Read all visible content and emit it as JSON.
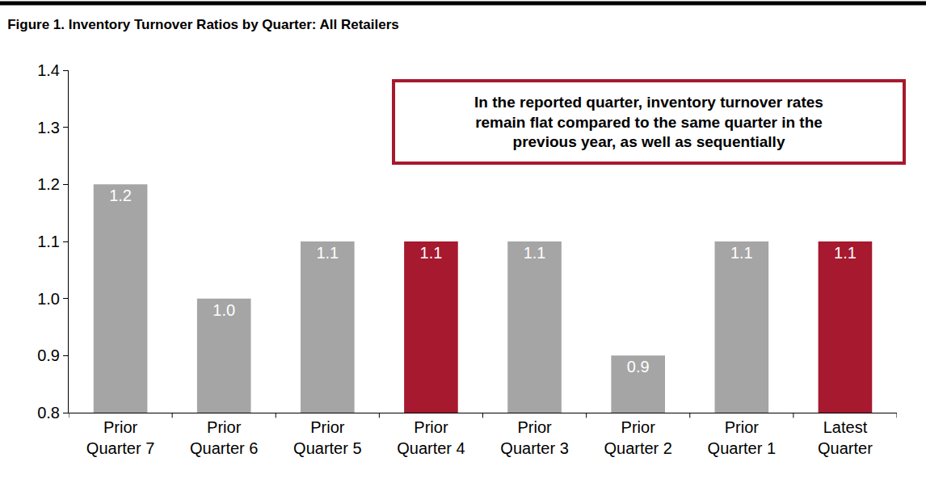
{
  "chart_data": {
    "type": "bar",
    "title": "Figure 1. Inventory Turnover Ratios by Quarter: All Retailers",
    "categories": [
      "Prior Quarter 7",
      "Prior Quarter 6",
      "Prior Quarter 5",
      "Prior Quarter 4",
      "Prior Quarter 3",
      "Prior Quarter 2",
      "Prior Quarter 1",
      "Latest Quarter"
    ],
    "values": [
      1.2,
      1.0,
      1.1,
      1.1,
      1.1,
      0.9,
      1.1,
      1.1
    ],
    "value_labels": [
      "1.2",
      "1.0",
      "1.1",
      "1.1",
      "1.1",
      "0.9",
      "1.1",
      "1.1"
    ],
    "colors": [
      "#a5a5a5",
      "#a5a5a5",
      "#a5a5a5",
      "#a6192e",
      "#a5a5a5",
      "#a5a5a5",
      "#a5a5a5",
      "#a6192e"
    ],
    "ylim": [
      0.8,
      1.4
    ],
    "yticks": [
      0.8,
      0.9,
      {
        "value": 1,
        "label": "1.0"
      },
      1.1,
      1.2,
      1.3,
      1.4
    ],
    "grid": false,
    "data_labels": true,
    "annotations": [
      {
        "text": "In the reported quarter, inventory turnover rates remain flat compared to the same quarter in the previous year, as well as sequentially"
      }
    ]
  }
}
